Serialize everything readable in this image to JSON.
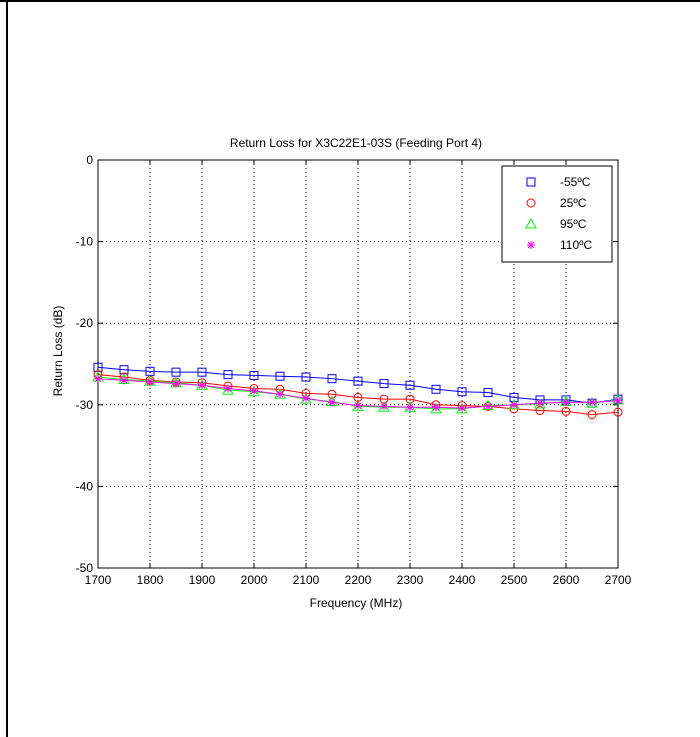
{
  "chart_data": {
    "type": "line",
    "title": "Return Loss for X3C22E1-03S (Feeding Port 4)",
    "xlabel": "Frequency (MHz)",
    "ylabel": "Return Loss (dB)",
    "xlim": [
      1700,
      2700
    ],
    "ylim": [
      -50,
      0
    ],
    "xticks": [
      1700,
      1800,
      1900,
      2000,
      2100,
      2200,
      2300,
      2400,
      2500,
      2600,
      2700
    ],
    "yticks": [
      0,
      -10,
      -20,
      -30,
      -40,
      -50
    ],
    "grid": true,
    "legend_position": "top-right",
    "x": [
      1700,
      1750,
      1800,
      1850,
      1900,
      1950,
      2000,
      2050,
      2100,
      2150,
      2200,
      2250,
      2300,
      2350,
      2400,
      2450,
      2500,
      2550,
      2600,
      2650,
      2700
    ],
    "series": [
      {
        "name": "-55ºC",
        "color": "#0000ff",
        "marker": "square",
        "values": [
          -25.4,
          -25.7,
          -25.9,
          -26.0,
          -26.0,
          -26.3,
          -26.4,
          -26.5,
          -26.6,
          -26.8,
          -27.1,
          -27.4,
          -27.6,
          -28.1,
          -28.4,
          -28.5,
          -29.1,
          -29.4,
          -29.4,
          -29.8,
          -29.3
        ]
      },
      {
        "name": "25ºC",
        "color": "#ff0000",
        "marker": "circle",
        "values": [
          -26.3,
          -26.6,
          -27.0,
          -27.2,
          -27.3,
          -27.7,
          -28.0,
          -28.1,
          -28.6,
          -28.7,
          -29.1,
          -29.3,
          -29.3,
          -30.0,
          -30.1,
          -30.2,
          -30.5,
          -30.7,
          -30.8,
          -31.2,
          -30.9
        ]
      },
      {
        "name": "95ºC",
        "color": "#00ff00",
        "marker": "triangle",
        "values": [
          -26.6,
          -26.9,
          -27.1,
          -27.3,
          -27.6,
          -28.2,
          -28.4,
          -28.7,
          -29.3,
          -29.6,
          -30.2,
          -30.3,
          -30.3,
          -30.5,
          -30.5,
          -30.1,
          -30.0,
          -29.9,
          -29.6,
          -29.8,
          -29.4
        ]
      },
      {
        "name": "110ºC",
        "color": "#ff00ff",
        "marker": "star",
        "values": [
          -26.8,
          -27.0,
          -27.2,
          -27.4,
          -27.6,
          -28.0,
          -28.3,
          -28.7,
          -29.2,
          -29.7,
          -30.1,
          -30.2,
          -30.3,
          -30.3,
          -30.4,
          -30.2,
          -30.0,
          -29.8,
          -29.7,
          -29.7,
          -29.5
        ]
      }
    ]
  }
}
